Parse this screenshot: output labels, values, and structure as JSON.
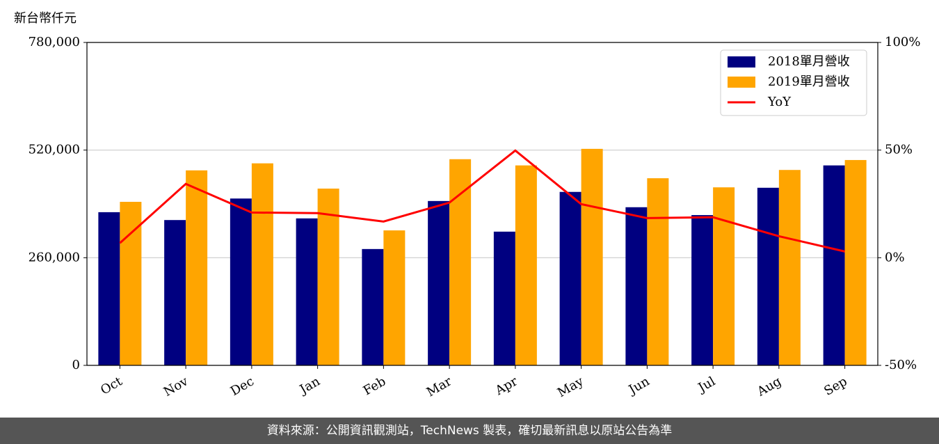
{
  "chart_data": {
    "type": "bar_line",
    "y_label": "新台幣仟元",
    "categories": [
      "Oct",
      "Nov",
      "Dec",
      "Jan",
      "Feb",
      "Mar",
      "Apr",
      "May",
      "Jun",
      "Jul",
      "Aug",
      "Sep"
    ],
    "series": [
      {
        "name": "2018單月營收",
        "type": "bar",
        "color": "#000080",
        "values": [
          370000,
          351000,
          403000,
          355000,
          281000,
          397000,
          323000,
          419000,
          382000,
          363000,
          429000,
          483000
        ]
      },
      {
        "name": "2019單月營收",
        "type": "bar",
        "color": "#ffa500",
        "values": [
          395000,
          471000,
          488000,
          427000,
          326000,
          498000,
          483000,
          523000,
          452000,
          430000,
          472000,
          496000
        ]
      },
      {
        "name": "YoY",
        "type": "line",
        "axis": "y2",
        "color": "#ff0000",
        "values": [
          6.8,
          34.3,
          21.0,
          20.7,
          16.8,
          25.6,
          49.8,
          24.9,
          18.4,
          18.8,
          10.0,
          2.9
        ]
      }
    ],
    "ylim": [
      0,
      780000
    ],
    "yticks": [
      0,
      {
        "value": 260000,
        "label": "260,000"
      },
      {
        "value": 520000,
        "label": "520,000"
      },
      {
        "value": 780000,
        "label": "780,000"
      }
    ],
    "y2lim": [
      -50,
      100
    ],
    "y2ticks": [
      {
        "value": -50,
        "label": "-50%"
      },
      {
        "value": 0,
        "label": "0%"
      },
      {
        "value": 50,
        "label": "50%"
      },
      {
        "value": 100,
        "label": "100%"
      }
    ],
    "grid": true,
    "legend": "upper right"
  },
  "footer": "資料來源：公開資訊觀測站，TechNews 製表，確切最新訊息以原站公告為準"
}
